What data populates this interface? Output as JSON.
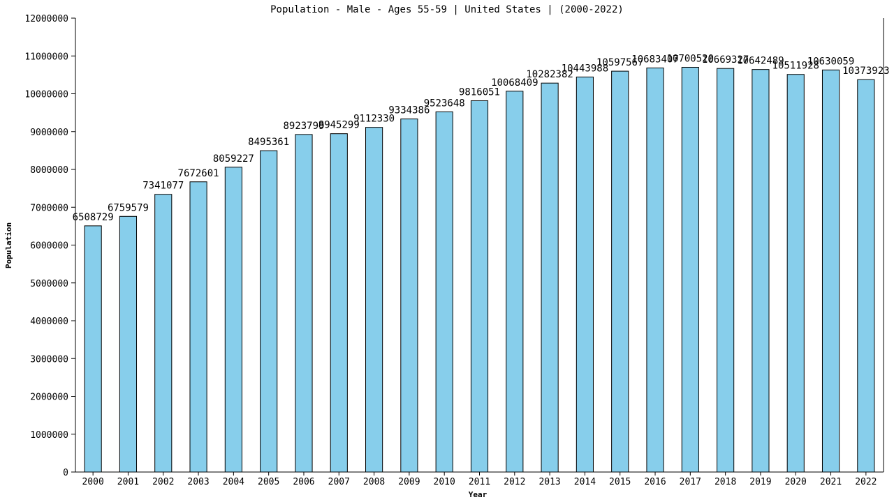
{
  "chart_data": {
    "type": "bar",
    "title": "Population - Male - Ages 55-59 | United States |  (2000-2022)",
    "xlabel": "Year",
    "ylabel": "Population",
    "ylim": [
      0,
      12000000
    ],
    "yticks": [
      0,
      1000000,
      2000000,
      3000000,
      4000000,
      5000000,
      6000000,
      7000000,
      8000000,
      9000000,
      10000000,
      11000000,
      12000000
    ],
    "grid": false,
    "legend": "none",
    "bar_color": "#87ceeb",
    "categories": [
      "2000",
      "2001",
      "2002",
      "2003",
      "2004",
      "2005",
      "2006",
      "2007",
      "2008",
      "2009",
      "2010",
      "2011",
      "2012",
      "2013",
      "2014",
      "2015",
      "2016",
      "2017",
      "2018",
      "2019",
      "2020",
      "2021",
      "2022"
    ],
    "values": [
      6508729,
      6759579,
      7341077,
      7672601,
      8059227,
      8495361,
      8923799,
      8945299,
      9112330,
      9334386,
      9523648,
      9816051,
      10068409,
      10282382,
      10443988,
      10597567,
      10683407,
      10700520,
      10669327,
      10642489,
      10511928,
      10630059,
      10373923
    ]
  }
}
